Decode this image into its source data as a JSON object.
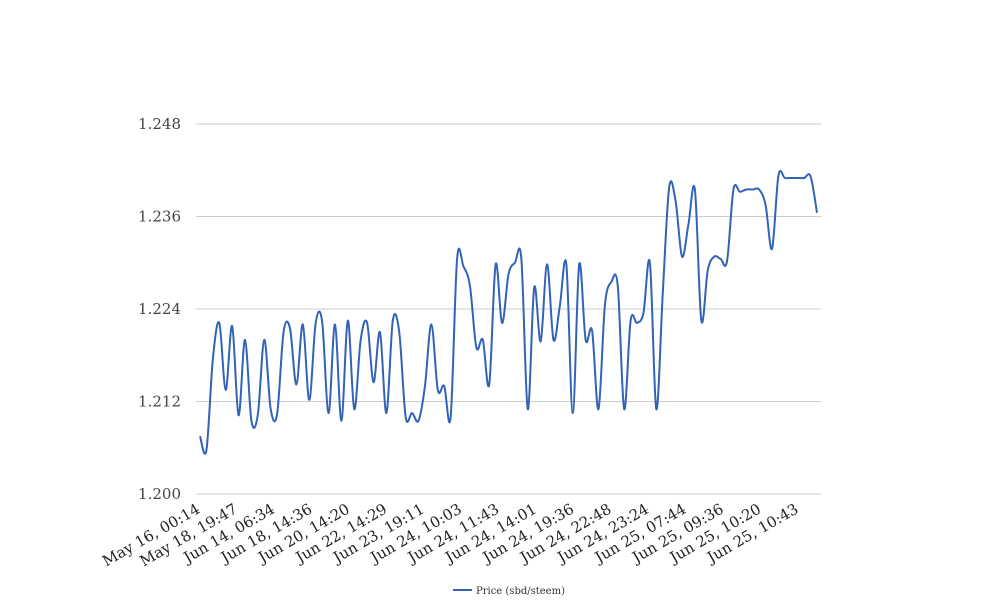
{
  "chart_data": {
    "type": "line",
    "title": "",
    "xlabel": "",
    "ylabel": "",
    "ylim": [
      1.2,
      1.248
    ],
    "yticks": [
      "1.200",
      "1.212",
      "1.224",
      "1.236",
      "1.248"
    ],
    "ytick_values": [
      1.2,
      1.212,
      1.224,
      1.236,
      1.248
    ],
    "grid": true,
    "legend": {
      "placement": "bottom-center"
    },
    "xtick_labels": [
      "May 16, 00:14",
      "May 18, 19:47",
      "Jun 14, 06:34",
      "Jun 18, 14:36",
      "Jun 20, 14:20",
      "Jun 22, 14:29",
      "Jun 23, 19:11",
      "Jun 24, 10:03",
      "Jun 24, 11:43",
      "Jun 24, 14:01",
      "Jun 24, 19:36",
      "Jun 24, 22:48",
      "Jun 24, 23:24",
      "Jun 25, 07:44",
      "Jun 25, 09:36",
      "Jun 25, 10:20",
      "Jun 25, 10:43"
    ],
    "series": [
      {
        "name": "Price (sbd/steem)",
        "color": "#3363b7",
        "values": [
          1.2075,
          1.2057,
          1.2175,
          1.2222,
          1.2135,
          1.2218,
          1.2102,
          1.22,
          1.2095,
          1.2103,
          1.22,
          1.211,
          1.2104,
          1.221,
          1.2215,
          1.2142,
          1.222,
          1.2122,
          1.2222,
          1.2224,
          1.2105,
          1.222,
          1.2095,
          1.2225,
          1.211,
          1.22,
          1.2222,
          1.2145,
          1.221,
          1.2105,
          1.2225,
          1.221,
          1.21,
          1.2105,
          1.2095,
          1.214,
          1.222,
          1.2135,
          1.214,
          1.21,
          1.2305,
          1.2295,
          1.227,
          1.219,
          1.22,
          1.2142,
          1.2298,
          1.2222,
          1.2285,
          1.23,
          1.2305,
          1.211,
          1.2268,
          1.2198,
          1.2298,
          1.22,
          1.2245,
          1.2298,
          1.2105,
          1.2298,
          1.22,
          1.2212,
          1.211,
          1.2245,
          1.2275,
          1.227,
          1.211,
          1.2225,
          1.2222,
          1.2235,
          1.23,
          1.211,
          1.226,
          1.2398,
          1.238,
          1.2308,
          1.235,
          1.2395,
          1.2225,
          1.229,
          1.2308,
          1.2305,
          1.2302,
          1.2395,
          1.2392,
          1.2395,
          1.2395,
          1.2395,
          1.2375,
          1.2318,
          1.2413,
          1.241,
          1.241,
          1.241,
          1.241,
          1.2412,
          1.2365
        ]
      }
    ]
  }
}
